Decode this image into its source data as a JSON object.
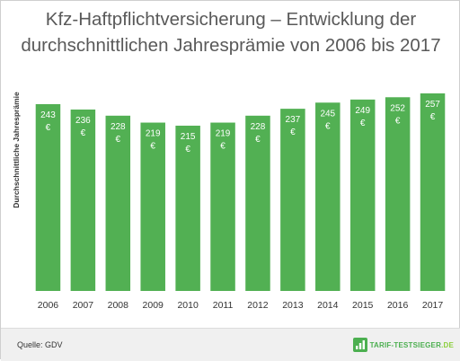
{
  "title": {
    "line1": "Kfz-Haftpflichtversicherung – Entwicklung der",
    "line2": "durchschnittlichen Jahresprämie von 2006 bis 2017"
  },
  "footer": {
    "source": "Quelle: GDV",
    "logo_main": "TARIF-TESTSIEGER",
    "logo_tld": ".DE",
    "logo_icon": "bar-chart-logo-icon"
  },
  "colors": {
    "bar": "#52b053",
    "label": "#ffffff",
    "axis_text": "#333333",
    "title": "#595959",
    "footer_bg": "#f0f0f0"
  },
  "chart_data": {
    "type": "bar",
    "title": "Kfz-Haftpflichtversicherung – Entwicklung der durchschnittlichen Jahresprämie von 2006 bis 2017",
    "ylabel": "Durchschnittliche Jahresprämie",
    "xlabel": "",
    "unit": "€",
    "categories": [
      "2006",
      "2007",
      "2008",
      "2009",
      "2010",
      "2011",
      "2012",
      "2013",
      "2014",
      "2015",
      "2016",
      "2017"
    ],
    "values": [
      243,
      236,
      228,
      219,
      215,
      219,
      228,
      237,
      245,
      249,
      252,
      257
    ],
    "ylim": [
      0,
      257
    ],
    "grid": false,
    "legend": "none",
    "data_labels": true
  }
}
